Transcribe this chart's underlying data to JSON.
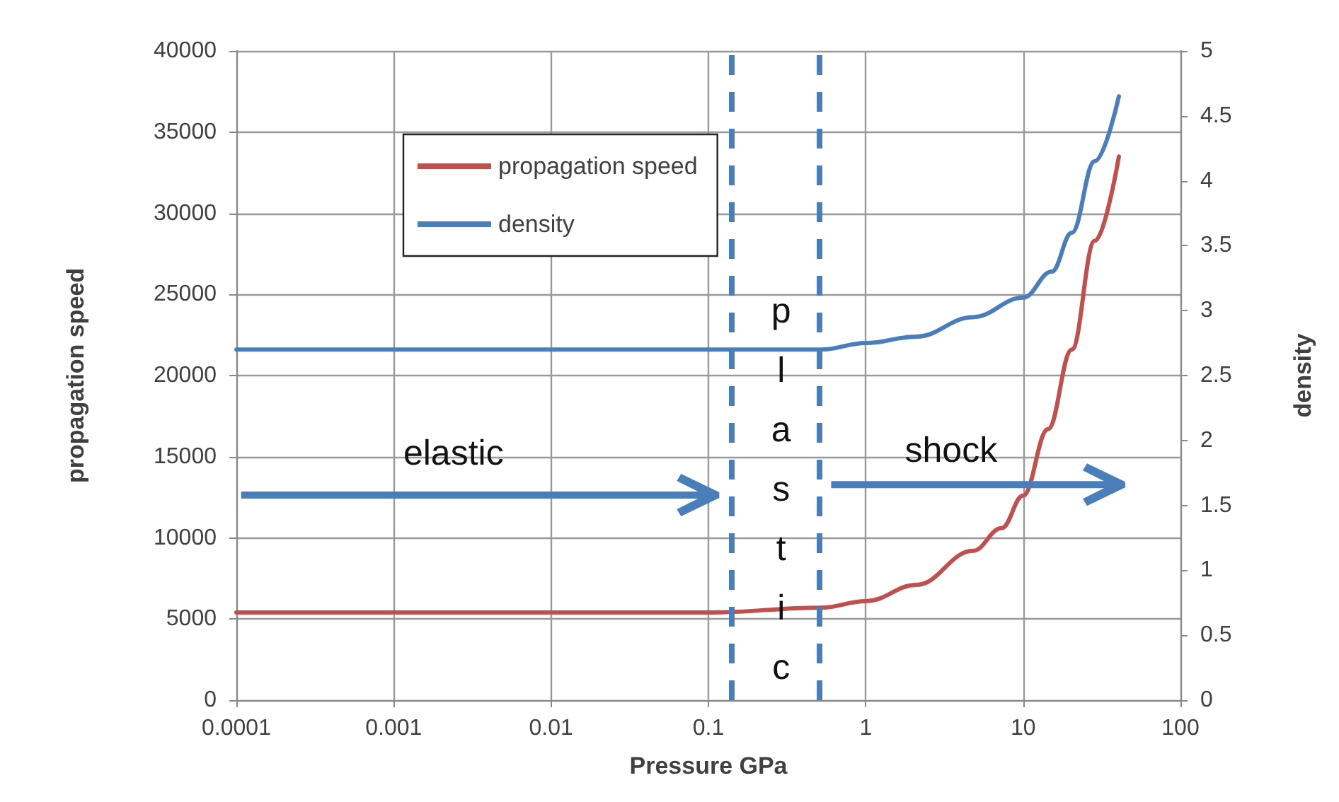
{
  "chart_data": {
    "type": "line",
    "xlabel": "Pressure GPa",
    "ylabel": "propagation speed",
    "y2label": "density",
    "log": "x",
    "grid": true,
    "legend": "top left",
    "marker": "none",
    "line_style": "solid",
    "xlim": [
      0.0001,
      100
    ],
    "xticks": [
      0.0001,
      0.001,
      0.01,
      0.1,
      1,
      10,
      100
    ],
    "ylim": [
      0,
      40000
    ],
    "yticks": [
      0,
      5000,
      10000,
      15000,
      20000,
      25000,
      30000,
      35000,
      40000
    ],
    "y2lim": [
      0,
      5
    ],
    "y2ticks": [
      0,
      0.5,
      1,
      1.5,
      2,
      2.5,
      3,
      3.5,
      4,
      4.5,
      5
    ],
    "series": [
      {
        "name": "propagation speed",
        "color": "#c0504d",
        "x": [
          0.0001,
          0.001,
          0.01,
          0.1,
          0.52,
          1,
          2.1,
          4.8,
          7.3,
          10,
          14.4,
          20.4,
          28.5,
          40.6
        ],
        "values": [
          5400,
          5400,
          5400,
          5400,
          5700,
          6100,
          7100,
          9200,
          10600,
          12600,
          16700,
          21600,
          28300,
          33500
        ]
      },
      {
        "name": "density",
        "color": "#4a7ebb",
        "axis": "y2",
        "x": [
          0.0001,
          0.001,
          0.01,
          0.1,
          0.52,
          1,
          2.1,
          4.8,
          10,
          15.2,
          20.4,
          28.5,
          40.6
        ],
        "values": [
          2.7,
          2.7,
          2.7,
          2.7,
          2.7,
          2.75,
          2.8,
          2.95,
          3.1,
          3.3,
          3.6,
          4.15,
          4.65
        ]
      }
    ],
    "ref_lines": [
      {
        "axis": "x",
        "value": 0.14,
        "color": "#4a7ebb",
        "line_style": "dashed"
      },
      {
        "axis": "x",
        "value": 0.51,
        "color": "#4a7ebb",
        "line_style": "dashed"
      }
    ],
    "annotations": [
      "elastic",
      "shock",
      "plastic"
    ]
  }
}
